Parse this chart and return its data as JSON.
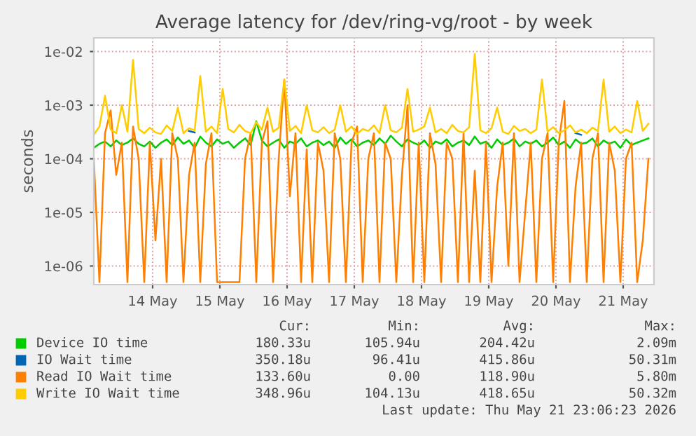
{
  "chart_data": {
    "type": "line",
    "title": "Average latency for /dev/ring-vg/root - by week",
    "ylabel": "seconds",
    "x": [
      "2026-05-13T15:00",
      "2026-05-13T17:00",
      "2026-05-13T19:00",
      "2026-05-13T21:00",
      "2026-05-13T23:00",
      "2026-05-14T01:00",
      "2026-05-14T03:00",
      "2026-05-14T05:00",
      "2026-05-14T07:00",
      "2026-05-14T09:00",
      "2026-05-14T11:00",
      "2026-05-14T13:00",
      "2026-05-14T15:00",
      "2026-05-14T17:00",
      "2026-05-14T19:00",
      "2026-05-14T21:00",
      "2026-05-14T23:00",
      "2026-05-15T01:00",
      "2026-05-15T03:00",
      "2026-05-15T05:00",
      "2026-05-15T07:00",
      "2026-05-15T09:00",
      "2026-05-15T11:00",
      "2026-05-15T13:00",
      "2026-05-15T15:00",
      "2026-05-15T17:00",
      "2026-05-15T19:00",
      "2026-05-15T21:00",
      "2026-05-15T23:00",
      "2026-05-16T01:00",
      "2026-05-16T03:00",
      "2026-05-16T05:00",
      "2026-05-16T07:00",
      "2026-05-16T09:00",
      "2026-05-16T11:00",
      "2026-05-16T13:00",
      "2026-05-16T15:00",
      "2026-05-16T17:00",
      "2026-05-16T19:00",
      "2026-05-16T21:00",
      "2026-05-16T23:00",
      "2026-05-17T01:00",
      "2026-05-17T03:00",
      "2026-05-17T05:00",
      "2026-05-17T07:00",
      "2026-05-17T09:00",
      "2026-05-17T11:00",
      "2026-05-17T13:00",
      "2026-05-17T15:00",
      "2026-05-17T17:00",
      "2026-05-17T19:00",
      "2026-05-17T21:00",
      "2026-05-17T23:00",
      "2026-05-18T01:00",
      "2026-05-18T03:00",
      "2026-05-18T05:00",
      "2026-05-18T07:00",
      "2026-05-18T09:00",
      "2026-05-18T11:00",
      "2026-05-18T13:00",
      "2026-05-18T15:00",
      "2026-05-18T17:00",
      "2026-05-18T19:00",
      "2026-05-18T21:00",
      "2026-05-18T23:00",
      "2026-05-19T01:00",
      "2026-05-19T03:00",
      "2026-05-19T05:00",
      "2026-05-19T07:00",
      "2026-05-19T09:00",
      "2026-05-19T11:00",
      "2026-05-19T13:00",
      "2026-05-19T15:00",
      "2026-05-19T17:00",
      "2026-05-19T19:00",
      "2026-05-19T21:00",
      "2026-05-19T23:00",
      "2026-05-20T01:00",
      "2026-05-20T03:00",
      "2026-05-20T05:00",
      "2026-05-20T07:00",
      "2026-05-20T09:00",
      "2026-05-20T11:00",
      "2026-05-20T13:00",
      "2026-05-20T15:00",
      "2026-05-20T17:00",
      "2026-05-20T19:00",
      "2026-05-20T21:00",
      "2026-05-20T23:00",
      "2026-05-21T01:00",
      "2026-05-21T03:00",
      "2026-05-21T05:00",
      "2026-05-21T07:00",
      "2026-05-21T09:00",
      "2026-05-21T11:00",
      "2026-05-21T13:00",
      "2026-05-21T15:00",
      "2026-05-21T17:00",
      "2026-05-21T19:00",
      "2026-05-21T21:00"
    ],
    "series": [
      {
        "name": "Device IO time",
        "color": "#00cc00",
        "values": [
          0.00016,
          0.00019,
          0.00021,
          0.00017,
          0.00022,
          0.00018,
          0.0002,
          0.00024,
          0.00019,
          0.00017,
          0.00021,
          0.00016,
          0.0002,
          0.00023,
          0.00018,
          0.00025,
          0.00019,
          0.00022,
          0.00016,
          0.00026,
          0.0002,
          0.00017,
          0.00023,
          0.00019,
          0.00021,
          0.00016,
          0.0002,
          0.00024,
          0.00018,
          0.0005,
          0.00022,
          0.00017,
          0.0002,
          0.00023,
          0.00016,
          0.00021,
          0.00019,
          0.00024,
          0.00017,
          0.0002,
          0.00022,
          0.00018,
          0.00021,
          0.00016,
          0.00025,
          0.00019,
          0.00023,
          0.00017,
          0.0002,
          0.00022,
          0.00018,
          0.00024,
          0.00019,
          0.00027,
          0.00021,
          0.00017,
          0.00023,
          0.0002,
          0.00018,
          0.00022,
          0.00016,
          0.00021,
          0.00019,
          0.00023,
          0.00017,
          0.0002,
          0.00022,
          0.00018,
          0.00026,
          0.00019,
          0.00021,
          0.00016,
          0.00023,
          0.00018,
          0.0002,
          0.00024,
          0.00017,
          0.00021,
          0.00019,
          0.00022,
          0.00017,
          0.0002,
          0.00025,
          0.00018,
          0.00021,
          0.00016,
          0.00023,
          0.00019,
          0.0002,
          0.00024,
          0.00017,
          0.00022,
          0.00019,
          0.00021,
          0.00016,
          0.00023,
          0.00018,
          0.0002,
          0.00022,
          0.00024
        ]
      },
      {
        "name": "IO Wait time",
        "color": "#0066b3",
        "values": [
          null,
          null,
          null,
          null,
          null,
          null,
          null,
          null,
          null,
          null,
          null,
          null,
          null,
          null,
          null,
          null,
          null,
          0.00033,
          0.00031,
          null,
          null,
          null,
          null,
          null,
          null,
          null,
          null,
          null,
          null,
          null,
          null,
          null,
          null,
          null,
          null,
          null,
          null,
          null,
          null,
          null,
          null,
          null,
          null,
          null,
          null,
          null,
          null,
          null,
          null,
          null,
          null,
          null,
          null,
          null,
          null,
          null,
          null,
          null,
          null,
          null,
          null,
          null,
          null,
          null,
          null,
          null,
          null,
          null,
          null,
          null,
          null,
          null,
          null,
          null,
          null,
          null,
          null,
          null,
          null,
          null,
          null,
          null,
          null,
          null,
          null,
          null,
          0.0003,
          0.00028,
          null,
          null,
          null,
          null,
          null,
          null,
          null,
          null,
          null,
          null,
          null,
          null
        ]
      },
      {
        "name": "Read IO Wait time",
        "color": "#ff8000",
        "values": [
          0.0001,
          5e-07,
          0.0003,
          0.0008,
          5e-05,
          0.0002,
          5e-07,
          0.0004,
          0.0001,
          5e-07,
          0.0002,
          3e-06,
          0.0001,
          5e-07,
          0.0003,
          0.0001,
          5e-07,
          5e-05,
          0.0002,
          5e-07,
          8e-05,
          0.0003,
          5e-07,
          5e-07,
          5e-07,
          5e-07,
          5e-07,
          0.0001,
          0.0003,
          5e-07,
          0.0002,
          0.0005,
          5e-07,
          0.0001,
          0.003,
          2e-05,
          0.0003,
          5e-07,
          0.00015,
          5e-07,
          0.0002,
          6e-05,
          5e-07,
          0.0003,
          0.0001,
          5e-07,
          0.0002,
          0.0004,
          5e-07,
          0.0001,
          0.0003,
          5e-07,
          0.0002,
          0.0001,
          5e-07,
          5e-05,
          0.001,
          5e-07,
          0.0002,
          5e-07,
          0.0003,
          8e-05,
          5e-07,
          0.0002,
          0.0001,
          5e-07,
          0.0003,
          5e-07,
          6e-05,
          5e-07,
          0.0002,
          5e-07,
          3e-05,
          0.0002,
          1e-06,
          0.0003,
          5e-07,
          1e-05,
          0.0002,
          5e-07,
          0.0001,
          0.0003,
          5e-07,
          0.0002,
          0.0012,
          5e-07,
          3e-05,
          0.0002,
          5e-07,
          0.0001,
          0.0003,
          5e-07,
          0.0002,
          6e-05,
          5e-07,
          0.0001,
          0.0002,
          5e-07,
          3e-06,
          0.0001
        ]
      },
      {
        "name": "Write IO Wait time",
        "color": "#ffcc00",
        "values": [
          0.00028,
          0.0004,
          0.0015,
          0.00035,
          0.0003,
          0.001,
          0.00032,
          0.007,
          0.00036,
          0.0003,
          0.00038,
          0.00031,
          0.00029,
          0.00042,
          0.00033,
          0.0009,
          0.0003,
          0.00037,
          0.00034,
          0.0035,
          0.00032,
          0.0004,
          0.0003,
          0.002,
          0.00036,
          0.00031,
          0.00043,
          0.00033,
          0.0003,
          0.00048,
          0.00035,
          0.0009,
          0.00032,
          0.00038,
          0.003,
          0.00033,
          0.00041,
          0.0003,
          0.001,
          0.00034,
          0.00031,
          0.00039,
          0.0003,
          0.00035,
          0.001,
          0.00032,
          0.0004,
          0.00029,
          0.00036,
          0.00033,
          0.00042,
          0.0003,
          0.001,
          0.00034,
          0.00031,
          0.00038,
          0.002,
          0.00032,
          0.00035,
          0.0004,
          0.0009,
          0.00031,
          0.00036,
          0.0003,
          0.00043,
          0.00033,
          0.00031,
          0.00039,
          0.009,
          0.00034,
          0.0003,
          0.00037,
          0.0009,
          0.00032,
          0.00029,
          0.00041,
          0.00033,
          0.00036,
          0.0003,
          0.00035,
          0.003,
          0.00032,
          0.00039,
          0.0003,
          0.00034,
          0.00042,
          0.00031,
          0.00035,
          0.0003,
          0.00038,
          0.00033,
          0.003,
          0.00032,
          0.0004,
          0.0003,
          0.00035,
          0.00031,
          0.0012,
          0.00033,
          0.00045
        ]
      }
    ],
    "log": "y",
    "ylim": [
      4.5e-07,
      0.018
    ],
    "yticks": [
      {
        "value": 1e-06,
        "label": "1e-06"
      },
      {
        "value": 1e-05,
        "label": "1e-05"
      },
      {
        "value": 0.0001,
        "label": "1e-04"
      },
      {
        "value": 0.001,
        "label": "1e-03"
      },
      {
        "value": 0.01,
        "label": "1e-02"
      }
    ],
    "xlim": [
      "2026-05-13T15:00",
      "2026-05-21T23:00"
    ],
    "xticks": [
      {
        "value": "2026-05-14T12:00",
        "label": "14 May"
      },
      {
        "value": "2026-05-15T12:00",
        "label": "15 May"
      },
      {
        "value": "2026-05-16T12:00",
        "label": "16 May"
      },
      {
        "value": "2026-05-17T12:00",
        "label": "17 May"
      },
      {
        "value": "2026-05-18T12:00",
        "label": "18 May"
      },
      {
        "value": "2026-05-19T12:00",
        "label": "19 May"
      },
      {
        "value": "2026-05-20T12:00",
        "label": "20 May"
      },
      {
        "value": "2026-05-21T12:00",
        "label": "21 May"
      }
    ],
    "grid": true,
    "legend": "bottom",
    "line_style": "solid",
    "marker": "none",
    "annotations": [
      "Cur:",
      "Min:",
      "Avg:",
      "Max:",
      "180.33u",
      "105.94u",
      "204.42u",
      "2.09m",
      "350.18u",
      "96.41u",
      "415.86u",
      "50.31m",
      "133.60u",
      "0.00",
      "118.90u",
      "5.80m",
      "348.96u",
      "104.13u",
      "418.65u",
      "50.32m",
      "Last update: Thu May 21 23:06:23 2026"
    ]
  }
}
